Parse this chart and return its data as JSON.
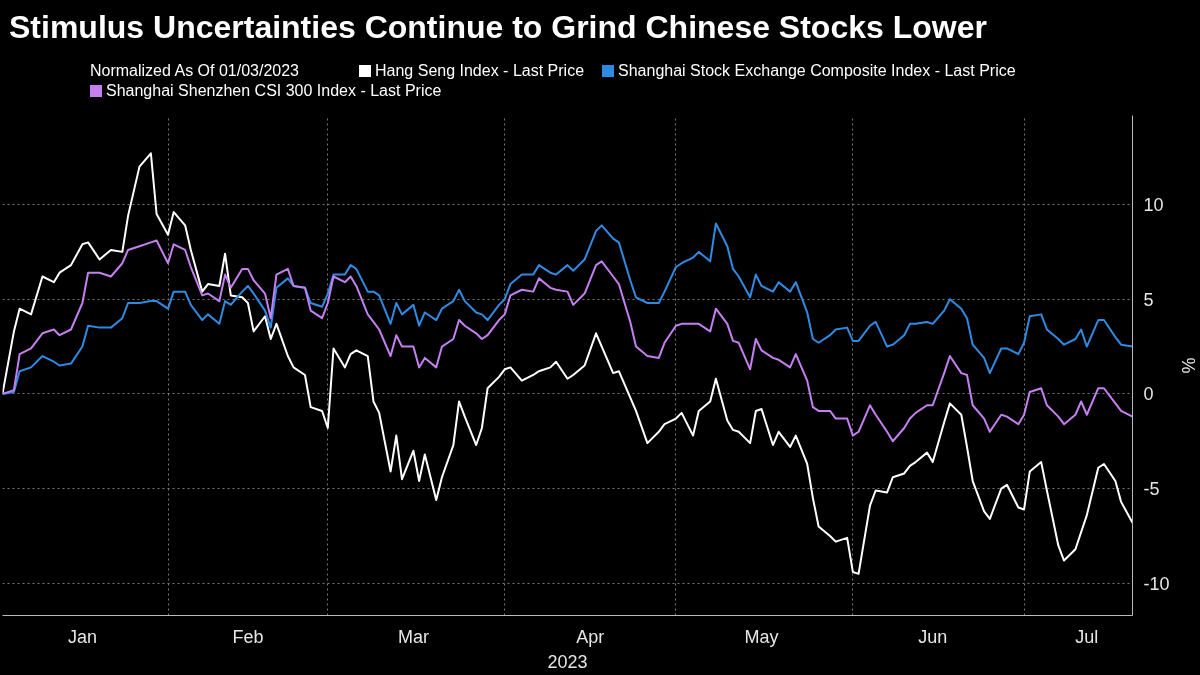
{
  "chart_data": {
    "type": "line",
    "title": "Stimulus Uncertainties Continue to Grind Chinese Stocks Lower",
    "legend_title": "Normalized As Of 01/03/2023",
    "xlabel": "2023",
    "ylabel": "%",
    "x": [
      "2023-01-03",
      "2023-01-05",
      "2023-01-06",
      "2023-01-08",
      "2023-01-10",
      "2023-01-12",
      "2023-01-13",
      "2023-01-15",
      "2023-01-17",
      "2023-01-18",
      "2023-01-20",
      "2023-01-22",
      "2023-01-24",
      "2023-01-25",
      "2023-01-27",
      "2023-01-29",
      "2023-01-30",
      "2023-02-01",
      "2023-02-02",
      "2023-02-04",
      "2023-02-05",
      "2023-02-07",
      "2023-02-08",
      "2023-02-10",
      "2023-02-11",
      "2023-02-12",
      "2023-02-14",
      "2023-02-15",
      "2023-02-16",
      "2023-02-18",
      "2023-02-19",
      "2023-02-20",
      "2023-02-22",
      "2023-02-23",
      "2023-02-25",
      "2023-02-26",
      "2023-02-28",
      "2023-03-01",
      "2023-03-02",
      "2023-03-04",
      "2023-03-05",
      "2023-03-06",
      "2023-03-08",
      "2023-03-09",
      "2023-03-10",
      "2023-03-12",
      "2023-03-13",
      "2023-03-14",
      "2023-03-16",
      "2023-03-17",
      "2023-03-18",
      "2023-03-20",
      "2023-03-21",
      "2023-03-23",
      "2023-03-24",
      "2023-03-25",
      "2023-03-27",
      "2023-03-28",
      "2023-03-29",
      "2023-03-31",
      "2023-04-01",
      "2023-04-02",
      "2023-04-04",
      "2023-04-06",
      "2023-04-07",
      "2023-04-09",
      "2023-04-10",
      "2023-04-12",
      "2023-04-13",
      "2023-04-15",
      "2023-04-17",
      "2023-04-18",
      "2023-04-20",
      "2023-04-21",
      "2023-04-23",
      "2023-04-24",
      "2023-04-26",
      "2023-04-28",
      "2023-04-29",
      "2023-05-01",
      "2023-05-02",
      "2023-05-04",
      "2023-05-05",
      "2023-05-07",
      "2023-05-08",
      "2023-05-10",
      "2023-05-11",
      "2023-05-12",
      "2023-05-14",
      "2023-05-15",
      "2023-05-16",
      "2023-05-18",
      "2023-05-19",
      "2023-05-21",
      "2023-05-22",
      "2023-05-24",
      "2023-05-25",
      "2023-05-26",
      "2023-05-28",
      "2023-05-29",
      "2023-05-31",
      "2023-06-01",
      "2023-06-02",
      "2023-06-04",
      "2023-06-05",
      "2023-06-07",
      "2023-06-08",
      "2023-06-10",
      "2023-06-11",
      "2023-06-12",
      "2023-06-14",
      "2023-06-15",
      "2023-06-17",
      "2023-06-18",
      "2023-06-20",
      "2023-06-21",
      "2023-06-22",
      "2023-06-24",
      "2023-06-25",
      "2023-06-27",
      "2023-06-28",
      "2023-06-30",
      "2023-07-01",
      "2023-07-02",
      "2023-07-04",
      "2023-07-05",
      "2023-07-07",
      "2023-07-08",
      "2023-07-10",
      "2023-07-11",
      "2023-07-12",
      "2023-07-14",
      "2023-07-15",
      "2023-07-17",
      "2023-07-18",
      "2023-07-20"
    ],
    "series": [
      {
        "name": "Hang Seng Index - Last Price",
        "color": "#ffffff",
        "values": [
          0,
          3.3,
          4.5,
          4.2,
          6.2,
          5.9,
          6.4,
          6.8,
          7.9,
          8.0,
          7.1,
          7.6,
          7.5,
          9.4,
          12.0,
          12.7,
          9.5,
          8.4,
          9.6,
          8.9,
          7.6,
          5.4,
          5.8,
          5.7,
          7.4,
          5.2,
          5.1,
          4.8,
          3.3,
          4.1,
          2.9,
          3.7,
          2.0,
          1.4,
          1.0,
          -0.7,
          -0.9,
          -1.8,
          2.4,
          1.4,
          2.1,
          2.3,
          2.0,
          -0.4,
          -1.0,
          -4.1,
          -2.2,
          -4.5,
          -3.0,
          -4.6,
          -3.2,
          -5.6,
          -4.4,
          -2.7,
          -0.4,
          -1.2,
          -2.7,
          -1.8,
          0.3,
          0.9,
          1.3,
          1.4,
          0.7,
          1.0,
          1.2,
          1.4,
          1.7,
          0.8,
          1.0,
          1.5,
          3.2,
          2.5,
          1.1,
          1.2,
          -0.2,
          -0.9,
          -2.6,
          -2.0,
          -1.6,
          -1.3,
          -1.0,
          -2.2,
          -0.9,
          -0.4,
          0.8,
          -1.4,
          -1.9,
          -2.0,
          -2.6,
          -0.9,
          -0.8,
          -2.7,
          -2.0,
          -2.8,
          -2.2,
          -3.7,
          -5.5,
          -7.0,
          -7.5,
          -7.8,
          -7.6,
          -9.4,
          -9.5,
          -5.9,
          -5.1,
          -5.2,
          -4.4,
          -4.2,
          -3.8,
          -3.6,
          -3.1,
          -3.6,
          -1.5,
          -0.5,
          -1.1,
          -2.8,
          -4.6,
          -6.2,
          -6.6,
          -5.0,
          -4.8,
          -6.0,
          -6.1,
          -4.1,
          -3.6,
          -5.1,
          -8.0,
          -8.8,
          -8.2,
          -7.3,
          -6.4,
          -3.9,
          -3.7,
          -4.6,
          -5.7,
          -6.8
        ]
      },
      {
        "name": "Shanghai Stock Exchange Composite Index - Last Price",
        "color": "#2f8ae3",
        "values": [
          0,
          0.1,
          1.2,
          1.4,
          2.0,
          1.7,
          1.5,
          1.6,
          2.5,
          3.6,
          3.5,
          3.5,
          4.0,
          4.8,
          4.8,
          4.9,
          4.9,
          4.5,
          5.4,
          5.4,
          4.7,
          3.9,
          4.2,
          3.7,
          4.9,
          4.7,
          5.4,
          5.7,
          5.3,
          4.4,
          3.5,
          5.6,
          6.1,
          5.7,
          5.6,
          4.8,
          4.6,
          5.3,
          6.3,
          6.3,
          6.8,
          6.6,
          5.4,
          5.4,
          5.2,
          3.7,
          4.8,
          4.2,
          4.7,
          3.6,
          4.3,
          3.9,
          4.5,
          4.9,
          5.5,
          4.9,
          4.3,
          4.2,
          3.9,
          4.7,
          5.0,
          5.8,
          6.3,
          6.3,
          6.8,
          6.4,
          6.3,
          6.8,
          6.5,
          7.1,
          8.6,
          8.9,
          8.2,
          8.0,
          6.0,
          5.1,
          4.8,
          4.8,
          5.4,
          6.7,
          6.9,
          7.2,
          7.5,
          7.0,
          9.0,
          7.8,
          6.6,
          6.2,
          5.1,
          6.3,
          5.7,
          5.4,
          5.9,
          5.4,
          5.9,
          4.3,
          2.9,
          2.7,
          3.1,
          3.4,
          3.5,
          2.8,
          2.8,
          3.6,
          3.8,
          2.5,
          2.6,
          3.1,
          3.7,
          3.7,
          3.8,
          3.7,
          4.4,
          5.0,
          4.5,
          4.0,
          2.6,
          1.9,
          1.1,
          2.4,
          2.4,
          2.1,
          2.7,
          4.1,
          4.2,
          3.4,
          2.9,
          2.6,
          2.9,
          3.4,
          2.5,
          3.9,
          3.9,
          3.0,
          2.6,
          2.5
        ]
      },
      {
        "name": "Shanghai Shenzhen CSI 300 Index - Last Price",
        "color": "#c47ff0",
        "values": [
          0,
          0.2,
          2.1,
          2.4,
          3.2,
          3.4,
          3.1,
          3.4,
          4.8,
          6.4,
          6.4,
          6.2,
          6.9,
          7.6,
          7.8,
          8.0,
          8.1,
          6.9,
          7.9,
          7.6,
          6.7,
          5.2,
          5.3,
          4.9,
          6.3,
          5.6,
          6.6,
          6.6,
          6.0,
          5.3,
          4.0,
          6.3,
          6.6,
          5.7,
          5.6,
          4.4,
          4.0,
          4.8,
          6.2,
          5.9,
          6.2,
          5.7,
          4.2,
          3.8,
          3.4,
          2.0,
          3.1,
          2.5,
          2.5,
          1.4,
          1.9,
          1.4,
          2.5,
          2.9,
          3.9,
          3.6,
          3.2,
          2.9,
          3.1,
          3.9,
          4.2,
          5.2,
          5.5,
          5.4,
          6.1,
          5.6,
          5.5,
          5.4,
          4.7,
          5.3,
          6.8,
          7.0,
          6.2,
          5.8,
          3.8,
          2.5,
          2.0,
          1.9,
          2.7,
          3.6,
          3.7,
          3.7,
          3.7,
          3.3,
          4.5,
          3.7,
          2.8,
          2.7,
          1.3,
          2.9,
          2.3,
          1.9,
          1.8,
          1.4,
          2.1,
          0.7,
          -0.7,
          -0.9,
          -0.9,
          -1.3,
          -1.3,
          -2.2,
          -2.0,
          -0.6,
          -1.1,
          -2.0,
          -2.5,
          -1.8,
          -1.3,
          -1.0,
          -0.6,
          -0.6,
          1.1,
          2.0,
          1.1,
          1.0,
          -0.6,
          -1.3,
          -2.0,
          -1.1,
          -1.2,
          -1.6,
          -1.1,
          0.1,
          0.3,
          -0.6,
          -1.2,
          -1.6,
          -1.1,
          -0.4,
          -1.1,
          0.3,
          0.3,
          -0.5,
          -0.9,
          -1.2
        ]
      }
    ],
    "xlim": [
      "2023-01-03",
      "2023-07-20"
    ],
    "xticks": [
      {
        "value": "2023-01-17",
        "label": "Jan"
      },
      {
        "value": "2023-02-01",
        "label": null
      },
      {
        "value": "2023-02-15",
        "label": "Feb"
      },
      {
        "value": "2023-03-01",
        "label": null
      },
      {
        "value": "2023-03-16",
        "label": "Mar"
      },
      {
        "value": "2023-04-01",
        "label": null
      },
      {
        "value": "2023-04-16",
        "label": "Apr"
      },
      {
        "value": "2023-05-01",
        "label": null
      },
      {
        "value": "2023-05-16",
        "label": "May"
      },
      {
        "value": "2023-06-01",
        "label": null
      },
      {
        "value": "2023-06-15",
        "label": "Jun"
      },
      {
        "value": "2023-07-01",
        "label": null
      },
      {
        "value": "2023-07-12",
        "label": "Jul"
      }
    ],
    "ylim": [
      -11.7,
      14.7
    ],
    "yticks": [
      -10,
      -5,
      0,
      5,
      10
    ],
    "grid": true,
    "legend": "top",
    "line_style": "solid"
  }
}
